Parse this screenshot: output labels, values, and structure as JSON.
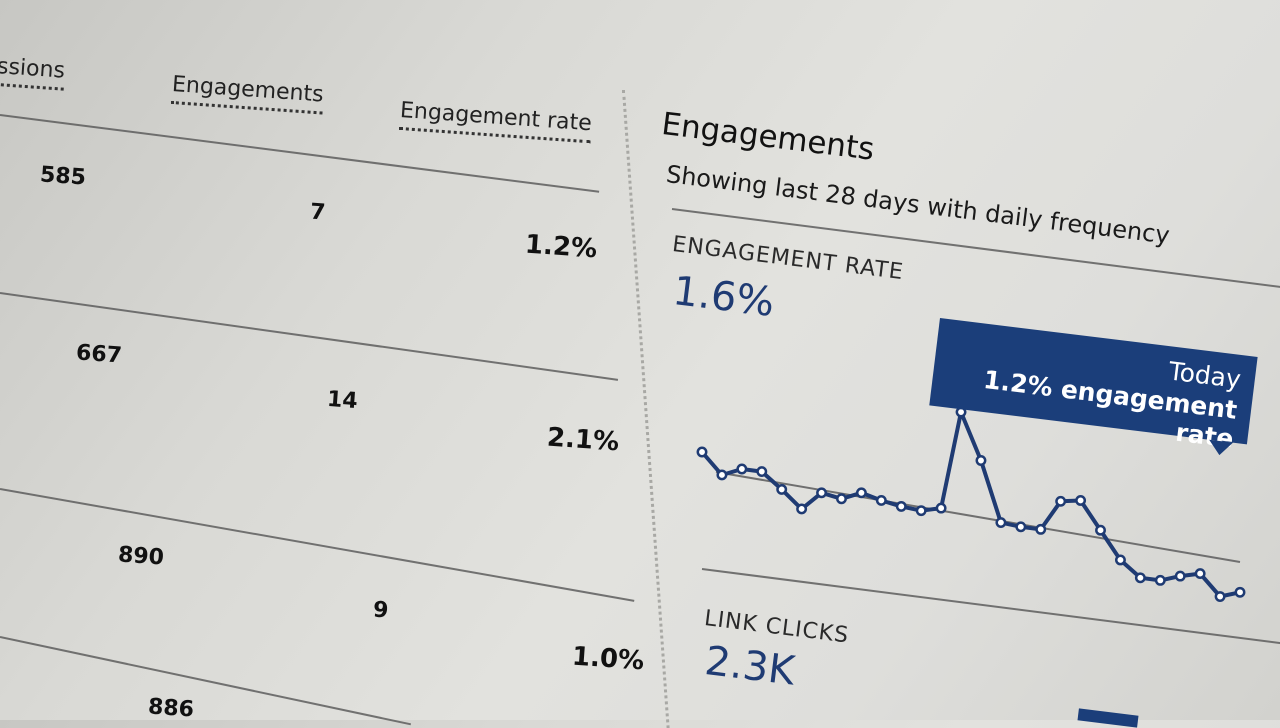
{
  "table": {
    "headers": {
      "impressions": "ssions",
      "engagements": "Engagements",
      "engagement_rate": "Engagement rate"
    },
    "rows": [
      {
        "impressions": "585",
        "engagements": "7",
        "rate": "1.2%"
      },
      {
        "impressions": "667",
        "engagements": "14",
        "rate": "2.1%"
      },
      {
        "impressions": "890",
        "engagements": "9",
        "rate": "1.0%"
      },
      {
        "impressions": "886"
      }
    ]
  },
  "panel": {
    "title": "Engagements",
    "subtitle": "Showing last 28 days with daily frequency",
    "engagement_rate_label": "ENGAGEMENT RATE",
    "engagement_rate_value": "1.6%",
    "tooltip_title": "Today",
    "tooltip_text": "1.2% engagement rate",
    "link_clicks_label": "LINK CLICKS",
    "link_clicks_value": "2.3K"
  },
  "chart_data": {
    "type": "line",
    "series": [
      {
        "values": [
          1.62,
          1.5,
          1.55,
          1.55,
          1.46,
          1.36,
          1.47,
          1.45,
          1.5,
          1.47,
          1.45,
          1.44,
          1.47,
          2.05,
          1.78,
          1.43,
          1.42,
          1.42,
          1.6,
          1.62,
          1.46,
          1.3,
          1.21,
          1.21,
          1.25,
          1.28,
          1.16,
          1.2
        ]
      }
    ]
  },
  "colors": {
    "accent": "#1b3e7a",
    "line": "#1f3b73"
  }
}
